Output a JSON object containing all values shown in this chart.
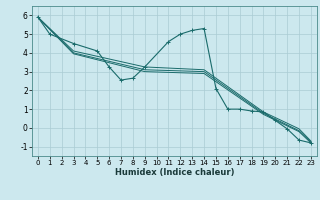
{
  "xlabel": "Humidex (Indice chaleur)",
  "xlim": [
    -0.5,
    23.5
  ],
  "ylim": [
    -1.5,
    6.5
  ],
  "yticks": [
    -1,
    0,
    1,
    2,
    3,
    4,
    5,
    6
  ],
  "xticks": [
    0,
    1,
    2,
    3,
    4,
    5,
    6,
    7,
    8,
    9,
    10,
    11,
    12,
    13,
    14,
    15,
    16,
    17,
    18,
    19,
    20,
    21,
    22,
    23
  ],
  "bg_color": "#cce8ee",
  "grid_color": "#aaccd4",
  "line_color": "#1a6b6b",
  "lines": [
    {
      "x": [
        0,
        1,
        3,
        5,
        6,
        7,
        8,
        9,
        11,
        12,
        13,
        14,
        15,
        16,
        17,
        18,
        19,
        20,
        21,
        22,
        23
      ],
      "y": [
        5.9,
        5.0,
        4.5,
        4.1,
        3.25,
        2.55,
        2.65,
        3.25,
        4.6,
        5.0,
        5.2,
        5.3,
        2.1,
        1.0,
        1.0,
        0.9,
        0.85,
        0.4,
        -0.05,
        -0.65,
        -0.8
      ],
      "marker": true
    },
    {
      "x": [
        0,
        3,
        9,
        14,
        19,
        22,
        23
      ],
      "y": [
        5.9,
        4.1,
        3.25,
        3.1,
        0.85,
        -0.05,
        -0.7
      ],
      "marker": false
    },
    {
      "x": [
        0,
        3,
        9,
        14,
        19,
        22,
        23
      ],
      "y": [
        5.9,
        4.0,
        3.1,
        3.0,
        0.78,
        -0.15,
        -0.75
      ],
      "marker": false
    },
    {
      "x": [
        0,
        3,
        9,
        14,
        19,
        22,
        23
      ],
      "y": [
        5.9,
        3.95,
        3.0,
        2.9,
        0.72,
        -0.2,
        -0.8
      ],
      "marker": false
    }
  ]
}
